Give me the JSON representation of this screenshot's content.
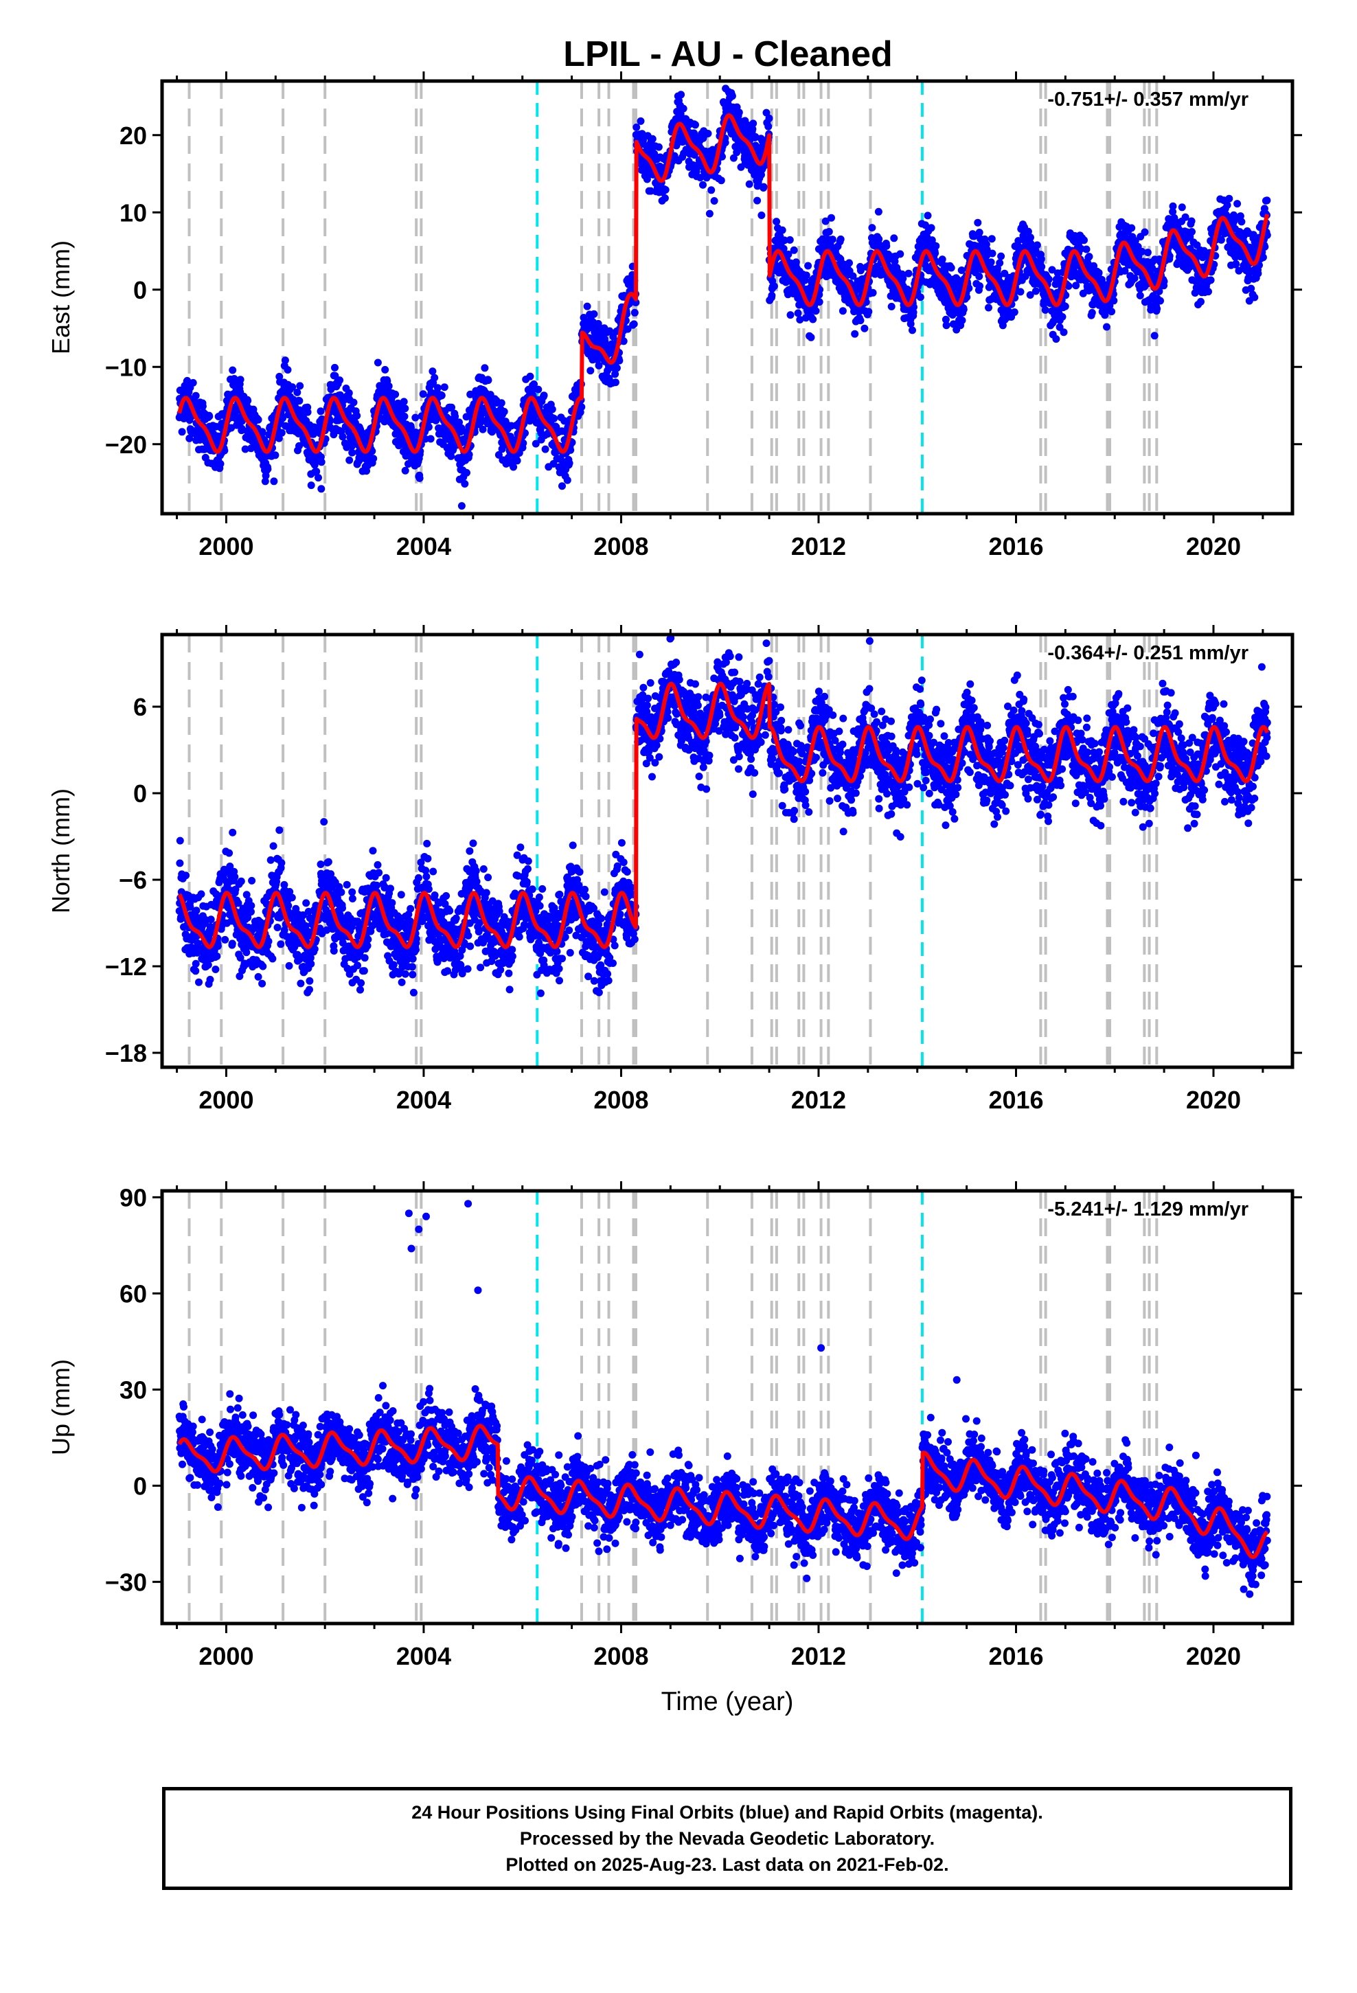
{
  "title": "LPIL  - AU - Cleaned",
  "footer": {
    "line1": "24 Hour Positions Using Final Orbits (blue) and Rapid Orbits (magenta).",
    "line2": "Processed by the Nevada Geodetic Laboratory.",
    "line3": "Plotted on 2025-Aug-23. Last data on 2021-Feb-02."
  },
  "colors": {
    "data": "#0000ff",
    "model": "#ff0000",
    "equipment_change": "#c0c0c0",
    "earthquake": "#00e5ee"
  },
  "chart_data": [
    {
      "type": "scatter",
      "title": "",
      "ylabel": "East (mm)",
      "xlabel": "",
      "rate": "-0.751+/- 0.357 mm/yr",
      "xlim": [
        1998.7,
        2021.6
      ],
      "ylim": [
        -29,
        27
      ],
      "xticks": [
        2000,
        2004,
        2008,
        2012,
        2016,
        2020
      ],
      "yticks": [
        -20,
        -10,
        0,
        10,
        20
      ],
      "grid": false,
      "steps": [
        [
          2007.22,
          3
        ],
        [
          2007.67,
          -2
        ],
        [
          2008.32,
          9
        ],
        [
          2008.38,
          4
        ],
        [
          2010.97,
          -8
        ],
        [
          2011.05,
          -4
        ],
        [
          2011.48,
          -3
        ],
        [
          2014.1,
          0.5
        ]
      ],
      "model": {
        "t0": 1999.05,
        "y0": -13.0,
        "trend": 0.18,
        "annual_amp": 3.0,
        "semi_amp": 1.0,
        "phase": 0.0,
        "noise": 1.8
      },
      "offsets": [
        {
          "from": 1999.05,
          "to": 2007.2,
          "level": -17.5
        },
        {
          "from": 2007.2,
          "to": 2008.3,
          "level": -6
        },
        {
          "from": 2008.3,
          "to": 2011.0,
          "level": 19
        },
        {
          "from": 2011.0,
          "to": 2021.1,
          "level": 3
        }
      ]
    },
    {
      "type": "scatter",
      "title": "",
      "ylabel": "North (mm)",
      "xlabel": "",
      "rate": "-0.364+/- 0.251 mm/yr",
      "xlim": [
        1998.7,
        2021.6
      ],
      "ylim": [
        -19,
        11
      ],
      "xticks": [
        2000,
        2004,
        2008,
        2012,
        2016,
        2020
      ],
      "yticks": [
        -18,
        -12,
        -6,
        0,
        6
      ],
      "grid": false,
      "model": {
        "annual_amp": 1.6,
        "semi_amp": 0.6,
        "phase": 1.2,
        "noise": 1.4
      },
      "offsets": [
        {
          "from": 1999.05,
          "to": 2008.3,
          "level": -9
        },
        {
          "from": 2008.3,
          "to": 2011.0,
          "level": 5.5
        },
        {
          "from": 2011.0,
          "to": 2021.1,
          "level": 2.5
        }
      ]
    },
    {
      "type": "scatter",
      "title": "",
      "ylabel": "Up (mm)",
      "xlabel": "Time (year)",
      "rate": "-5.241+/- 1.129 mm/yr",
      "xlim": [
        1998.7,
        2021.6
      ],
      "ylim": [
        -43,
        92
      ],
      "xticks": [
        2000,
        2004,
        2008,
        2012,
        2016,
        2020
      ],
      "yticks": [
        -30,
        0,
        30,
        60,
        90
      ],
      "grid": false,
      "model": {
        "annual_amp": 4.5,
        "semi_amp": 1.5,
        "phase": 0.3,
        "noise": 5.0
      },
      "offsets": [
        {
          "from": 1999.05,
          "to": 2005.5,
          "level": 12
        },
        {
          "from": 2005.5,
          "to": 2014.1,
          "level": -6
        },
        {
          "from": 2014.1,
          "to": 2021.1,
          "level": -2
        }
      ],
      "outliers": [
        [
          2003.7,
          85
        ],
        [
          2003.75,
          74
        ],
        [
          2003.9,
          80
        ],
        [
          2004.05,
          84
        ],
        [
          2004.9,
          88
        ],
        [
          2005.1,
          61
        ],
        [
          2012.05,
          43
        ],
        [
          2014.8,
          33
        ]
      ]
    }
  ],
  "equipment_changes": [
    1999.25,
    1999.9,
    2001.15,
    2002.0,
    2003.85,
    2003.95,
    2007.2,
    2007.55,
    2007.75,
    2008.25,
    2008.3,
    2009.75,
    2010.65,
    2011.05,
    2011.15,
    2011.6,
    2011.7,
    2012.05,
    2012.2,
    2013.05,
    2016.5,
    2016.6,
    2017.85,
    2017.9,
    2018.6,
    2018.7,
    2018.85
  ],
  "earthquakes": [
    2006.3,
    2014.1
  ]
}
